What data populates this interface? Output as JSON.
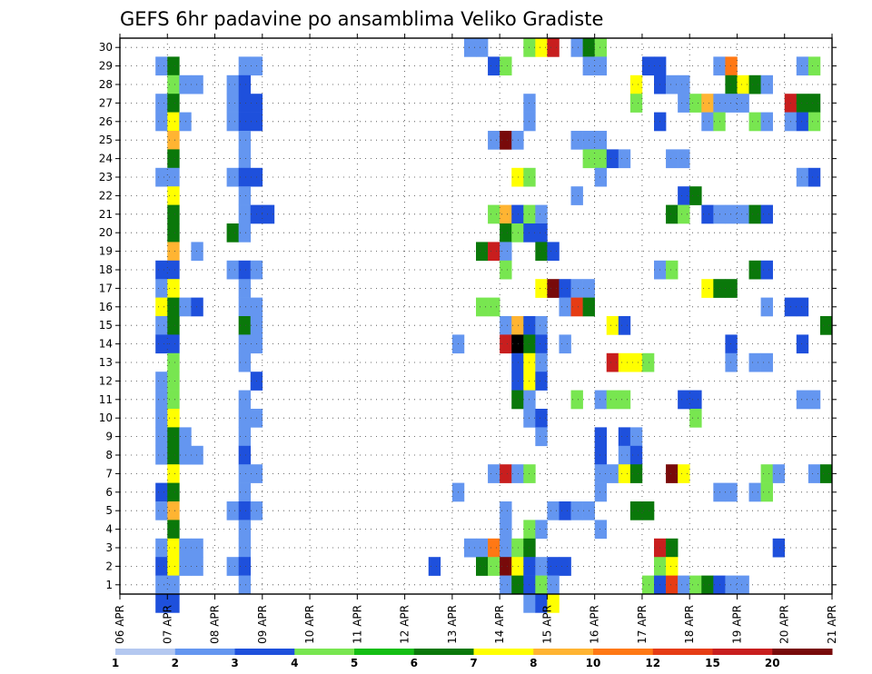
{
  "chart_data": {
    "type": "heatmap",
    "title": "GEFS 6hr padavine po ansamblima Veliko Gradiste",
    "xlabel": "",
    "ylabel": "",
    "x_tick_labels": [
      "06 APR",
      "07 APR",
      "08 APR",
      "09 APR",
      "10 APR",
      "11 APR",
      "12 APR",
      "13 APR",
      "14 APR",
      "15 APR",
      "16 APR",
      "17 APR",
      "18 APR",
      "19 APR",
      "20 APR",
      "21 APR"
    ],
    "y_tick_labels": [
      "1",
      "2",
      "3",
      "4",
      "5",
      "6",
      "7",
      "8",
      "9",
      "10",
      "11",
      "12",
      "13",
      "14",
      "15",
      "16",
      "17",
      "18",
      "19",
      "20",
      "21",
      "22",
      "23",
      "24",
      "25",
      "26",
      "27",
      "28",
      "29",
      "30"
    ],
    "x_unit": "6-hour step since 06 APR 00z",
    "xlim": [
      0,
      60
    ],
    "ylim": [
      0.5,
      30.5
    ],
    "grid": true,
    "legend": {
      "placement": "bottom",
      "labels": [
        "1",
        "2",
        "3",
        "4",
        "5",
        "6",
        "7",
        "8",
        "10",
        "12",
        "15",
        "20"
      ],
      "colors": [
        "#b4c8f0",
        "#6496f0",
        "#1e50dc",
        "#78e650",
        "#14be14",
        "#0a780a",
        "#ffff00",
        "#ffb432",
        "#ff7814",
        "#e63c14",
        "#c81e1e",
        "#780a0a"
      ]
    },
    "cells": [
      [
        30,
        29,
        1
      ],
      [
        30,
        30,
        1
      ],
      [
        30,
        34,
        3
      ],
      [
        30,
        35,
        6
      ],
      [
        30,
        36,
        10
      ],
      [
        30,
        38,
        1
      ],
      [
        30,
        39,
        5
      ],
      [
        30,
        40,
        3
      ],
      [
        29,
        3,
        1
      ],
      [
        29,
        4,
        5
      ],
      [
        29,
        10,
        1
      ],
      [
        29,
        11,
        1
      ],
      [
        29,
        31,
        2
      ],
      [
        29,
        32,
        3
      ],
      [
        29,
        39,
        1
      ],
      [
        29,
        40,
        1
      ],
      [
        29,
        44,
        2
      ],
      [
        29,
        45,
        2
      ],
      [
        29,
        50,
        1
      ],
      [
        29,
        51,
        8
      ],
      [
        29,
        57,
        1
      ],
      [
        29,
        58,
        3
      ],
      [
        28,
        4,
        3
      ],
      [
        28,
        5,
        1
      ],
      [
        28,
        6,
        1
      ],
      [
        28,
        9,
        1
      ],
      [
        28,
        10,
        2
      ],
      [
        28,
        43,
        6
      ],
      [
        28,
        45,
        2
      ],
      [
        28,
        46,
        1
      ],
      [
        28,
        47,
        1
      ],
      [
        28,
        51,
        5
      ],
      [
        28,
        52,
        6
      ],
      [
        28,
        53,
        5
      ],
      [
        28,
        54,
        1
      ],
      [
        27,
        3,
        1
      ],
      [
        27,
        4,
        5
      ],
      [
        27,
        9,
        1
      ],
      [
        27,
        10,
        2
      ],
      [
        27,
        11,
        2
      ],
      [
        27,
        34,
        1
      ],
      [
        27,
        43,
        3
      ],
      [
        27,
        47,
        1
      ],
      [
        27,
        48,
        3
      ],
      [
        27,
        49,
        7
      ],
      [
        27,
        50,
        1
      ],
      [
        27,
        51,
        1
      ],
      [
        27,
        52,
        1
      ],
      [
        27,
        56,
        10
      ],
      [
        27,
        57,
        5
      ],
      [
        27,
        58,
        5
      ],
      [
        26,
        3,
        1
      ],
      [
        26,
        4,
        6
      ],
      [
        26,
        5,
        1
      ],
      [
        26,
        9,
        1
      ],
      [
        26,
        10,
        2
      ],
      [
        26,
        11,
        2
      ],
      [
        26,
        34,
        1
      ],
      [
        26,
        45,
        2
      ],
      [
        26,
        49,
        1
      ],
      [
        26,
        50,
        3
      ],
      [
        26,
        53,
        3
      ],
      [
        26,
        54,
        1
      ],
      [
        26,
        56,
        1
      ],
      [
        26,
        57,
        2
      ],
      [
        26,
        58,
        3
      ],
      [
        25,
        4,
        7
      ],
      [
        25,
        10,
        1
      ],
      [
        25,
        31,
        1
      ],
      [
        25,
        32,
        11
      ],
      [
        25,
        33,
        1
      ],
      [
        25,
        38,
        1
      ],
      [
        25,
        39,
        1
      ],
      [
        25,
        40,
        1
      ],
      [
        24,
        4,
        5
      ],
      [
        24,
        10,
        1
      ],
      [
        24,
        39,
        3
      ],
      [
        24,
        40,
        3
      ],
      [
        24,
        41,
        2
      ],
      [
        24,
        42,
        1
      ],
      [
        24,
        46,
        1
      ],
      [
        24,
        47,
        1
      ],
      [
        23,
        3,
        1
      ],
      [
        23,
        4,
        1
      ],
      [
        23,
        9,
        1
      ],
      [
        23,
        10,
        2
      ],
      [
        23,
        11,
        2
      ],
      [
        23,
        33,
        6
      ],
      [
        23,
        34,
        3
      ],
      [
        23,
        40,
        1
      ],
      [
        23,
        57,
        1
      ],
      [
        23,
        58,
        2
      ],
      [
        22,
        4,
        6
      ],
      [
        22,
        10,
        1
      ],
      [
        22,
        38,
        1
      ],
      [
        22,
        47,
        2
      ],
      [
        22,
        48,
        5
      ],
      [
        21,
        4,
        5
      ],
      [
        21,
        10,
        1
      ],
      [
        21,
        11,
        2
      ],
      [
        21,
        12,
        2
      ],
      [
        21,
        31,
        3
      ],
      [
        21,
        32,
        7
      ],
      [
        21,
        33,
        2
      ],
      [
        21,
        34,
        3
      ],
      [
        21,
        35,
        1
      ],
      [
        21,
        46,
        5
      ],
      [
        21,
        47,
        3
      ],
      [
        21,
        49,
        2
      ],
      [
        21,
        50,
        1
      ],
      [
        21,
        51,
        1
      ],
      [
        21,
        52,
        1
      ],
      [
        21,
        53,
        5
      ],
      [
        21,
        54,
        2
      ],
      [
        20,
        4,
        5
      ],
      [
        20,
        9,
        5
      ],
      [
        20,
        10,
        1
      ],
      [
        20,
        32,
        5
      ],
      [
        20,
        33,
        3
      ],
      [
        20,
        34,
        2
      ],
      [
        20,
        35,
        2
      ],
      [
        19,
        4,
        7
      ],
      [
        19,
        6,
        1
      ],
      [
        19,
        30,
        5
      ],
      [
        19,
        31,
        10
      ],
      [
        19,
        32,
        1
      ],
      [
        19,
        35,
        5
      ],
      [
        19,
        36,
        2
      ],
      [
        18,
        3,
        2
      ],
      [
        18,
        4,
        2
      ],
      [
        18,
        9,
        1
      ],
      [
        18,
        10,
        2
      ],
      [
        18,
        11,
        1
      ],
      [
        18,
        32,
        3
      ],
      [
        18,
        45,
        1
      ],
      [
        18,
        46,
        3
      ],
      [
        18,
        53,
        5
      ],
      [
        18,
        54,
        2
      ],
      [
        17,
        3,
        1
      ],
      [
        17,
        4,
        6
      ],
      [
        17,
        10,
        1
      ],
      [
        17,
        35,
        6
      ],
      [
        17,
        36,
        11
      ],
      [
        17,
        37,
        2
      ],
      [
        17,
        38,
        1
      ],
      [
        17,
        39,
        1
      ],
      [
        17,
        49,
        6
      ],
      [
        17,
        50,
        5
      ],
      [
        17,
        51,
        5
      ],
      [
        16,
        3,
        6
      ],
      [
        16,
        4,
        5
      ],
      [
        16,
        5,
        1
      ],
      [
        16,
        6,
        2
      ],
      [
        16,
        10,
        1
      ],
      [
        16,
        11,
        1
      ],
      [
        16,
        30,
        3
      ],
      [
        16,
        31,
        3
      ],
      [
        16,
        37,
        1
      ],
      [
        16,
        38,
        9
      ],
      [
        16,
        39,
        5
      ],
      [
        16,
        54,
        1
      ],
      [
        16,
        56,
        2
      ],
      [
        16,
        57,
        2
      ],
      [
        15,
        3,
        1
      ],
      [
        15,
        4,
        5
      ],
      [
        15,
        10,
        5
      ],
      [
        15,
        11,
        1
      ],
      [
        15,
        32,
        1
      ],
      [
        15,
        33,
        7
      ],
      [
        15,
        34,
        2
      ],
      [
        15,
        35,
        1
      ],
      [
        15,
        41,
        6
      ],
      [
        15,
        42,
        2
      ],
      [
        15,
        59,
        5
      ],
      [
        14,
        3,
        2
      ],
      [
        14,
        4,
        2
      ],
      [
        14,
        10,
        1
      ],
      [
        14,
        11,
        1
      ],
      [
        14,
        28,
        1
      ],
      [
        14,
        32,
        10
      ],
      [
        14,
        33,
        12
      ],
      [
        14,
        34,
        5
      ],
      [
        14,
        35,
        2
      ],
      [
        14,
        37,
        1
      ],
      [
        14,
        51,
        2
      ],
      [
        14,
        57,
        2
      ],
      [
        13,
        4,
        3
      ],
      [
        13,
        10,
        1
      ],
      [
        13,
        33,
        2
      ],
      [
        13,
        34,
        6
      ],
      [
        13,
        35,
        1
      ],
      [
        13,
        41,
        10
      ],
      [
        13,
        42,
        6
      ],
      [
        13,
        43,
        6
      ],
      [
        13,
        44,
        3
      ],
      [
        13,
        51,
        1
      ],
      [
        13,
        53,
        1
      ],
      [
        13,
        54,
        1
      ],
      [
        12,
        3,
        1
      ],
      [
        12,
        4,
        3
      ],
      [
        12,
        11,
        2
      ],
      [
        12,
        33,
        2
      ],
      [
        12,
        34,
        6
      ],
      [
        12,
        35,
        2
      ],
      [
        11,
        3,
        1
      ],
      [
        11,
        4,
        3
      ],
      [
        11,
        10,
        1
      ],
      [
        11,
        33,
        5
      ],
      [
        11,
        34,
        1
      ],
      [
        11,
        38,
        3
      ],
      [
        11,
        40,
        1
      ],
      [
        11,
        41,
        3
      ],
      [
        11,
        42,
        3
      ],
      [
        11,
        47,
        2
      ],
      [
        11,
        48,
        2
      ],
      [
        11,
        57,
        1
      ],
      [
        11,
        58,
        1
      ],
      [
        10,
        3,
        1
      ],
      [
        10,
        4,
        6
      ],
      [
        10,
        10,
        1
      ],
      [
        10,
        11,
        1
      ],
      [
        10,
        34,
        1
      ],
      [
        10,
        35,
        2
      ],
      [
        10,
        48,
        3
      ],
      [
        9,
        3,
        1
      ],
      [
        9,
        4,
        5
      ],
      [
        9,
        5,
        1
      ],
      [
        9,
        10,
        1
      ],
      [
        9,
        35,
        1
      ],
      [
        9,
        40,
        2
      ],
      [
        9,
        42,
        2
      ],
      [
        9,
        43,
        1
      ],
      [
        8,
        3,
        1
      ],
      [
        8,
        4,
        5
      ],
      [
        8,
        5,
        1
      ],
      [
        8,
        6,
        1
      ],
      [
        8,
        10,
        2
      ],
      [
        8,
        40,
        2
      ],
      [
        8,
        42,
        1
      ],
      [
        8,
        43,
        2
      ],
      [
        7,
        4,
        6
      ],
      [
        7,
        10,
        1
      ],
      [
        7,
        11,
        1
      ],
      [
        7,
        31,
        1
      ],
      [
        7,
        32,
        10
      ],
      [
        7,
        33,
        1
      ],
      [
        7,
        34,
        3
      ],
      [
        7,
        40,
        1
      ],
      [
        7,
        41,
        1
      ],
      [
        7,
        42,
        6
      ],
      [
        7,
        43,
        5
      ],
      [
        7,
        46,
        11
      ],
      [
        7,
        47,
        6
      ],
      [
        7,
        54,
        3
      ],
      [
        7,
        55,
        1
      ],
      [
        7,
        58,
        1
      ],
      [
        7,
        59,
        5
      ],
      [
        6,
        3,
        2
      ],
      [
        6,
        4,
        5
      ],
      [
        6,
        10,
        1
      ],
      [
        6,
        28,
        1
      ],
      [
        6,
        40,
        1
      ],
      [
        6,
        50,
        1
      ],
      [
        6,
        51,
        1
      ],
      [
        6,
        53,
        1
      ],
      [
        6,
        54,
        3
      ],
      [
        5,
        3,
        1
      ],
      [
        5,
        4,
        7
      ],
      [
        5,
        9,
        1
      ],
      [
        5,
        10,
        2
      ],
      [
        5,
        11,
        1
      ],
      [
        5,
        32,
        1
      ],
      [
        5,
        36,
        1
      ],
      [
        5,
        37,
        2
      ],
      [
        5,
        38,
        1
      ],
      [
        5,
        39,
        1
      ],
      [
        5,
        43,
        5
      ],
      [
        5,
        44,
        5
      ],
      [
        4,
        4,
        5
      ],
      [
        4,
        10,
        1
      ],
      [
        4,
        32,
        1
      ],
      [
        4,
        34,
        3
      ],
      [
        4,
        35,
        1
      ],
      [
        4,
        40,
        1
      ],
      [
        3,
        3,
        1
      ],
      [
        3,
        4,
        6
      ],
      [
        3,
        5,
        1
      ],
      [
        3,
        6,
        1
      ],
      [
        3,
        10,
        1
      ],
      [
        3,
        29,
        1
      ],
      [
        3,
        30,
        1
      ],
      [
        3,
        31,
        8
      ],
      [
        3,
        32,
        1
      ],
      [
        3,
        33,
        3
      ],
      [
        3,
        34,
        5
      ],
      [
        3,
        45,
        10
      ],
      [
        3,
        46,
        5
      ],
      [
        3,
        55,
        2
      ],
      [
        2,
        3,
        2
      ],
      [
        2,
        4,
        6
      ],
      [
        2,
        5,
        1
      ],
      [
        2,
        6,
        1
      ],
      [
        2,
        9,
        1
      ],
      [
        2,
        10,
        2
      ],
      [
        2,
        26,
        2
      ],
      [
        2,
        30,
        5
      ],
      [
        2,
        31,
        3
      ],
      [
        2,
        32,
        11
      ],
      [
        2,
        33,
        6
      ],
      [
        2,
        34,
        2
      ],
      [
        2,
        35,
        1
      ],
      [
        2,
        36,
        2
      ],
      [
        2,
        37,
        2
      ],
      [
        2,
        45,
        3
      ],
      [
        2,
        46,
        6
      ],
      [
        1,
        3,
        1
      ],
      [
        1,
        4,
        1
      ],
      [
        1,
        10,
        1
      ],
      [
        1,
        32,
        1
      ],
      [
        1,
        33,
        5
      ],
      [
        1,
        34,
        2
      ],
      [
        1,
        35,
        3
      ],
      [
        1,
        36,
        1
      ],
      [
        1,
        44,
        3
      ],
      [
        1,
        45,
        2
      ],
      [
        1,
        46,
        9
      ],
      [
        1,
        47,
        1
      ],
      [
        1,
        48,
        3
      ],
      [
        1,
        49,
        5
      ],
      [
        1,
        50,
        2
      ],
      [
        1,
        51,
        1
      ],
      [
        1,
        52,
        1
      ],
      [
        0,
        3,
        2
      ],
      [
        0,
        4,
        2
      ],
      [
        0,
        34,
        1
      ],
      [
        0,
        35,
        2
      ],
      [
        0,
        36,
        6
      ]
    ]
  }
}
